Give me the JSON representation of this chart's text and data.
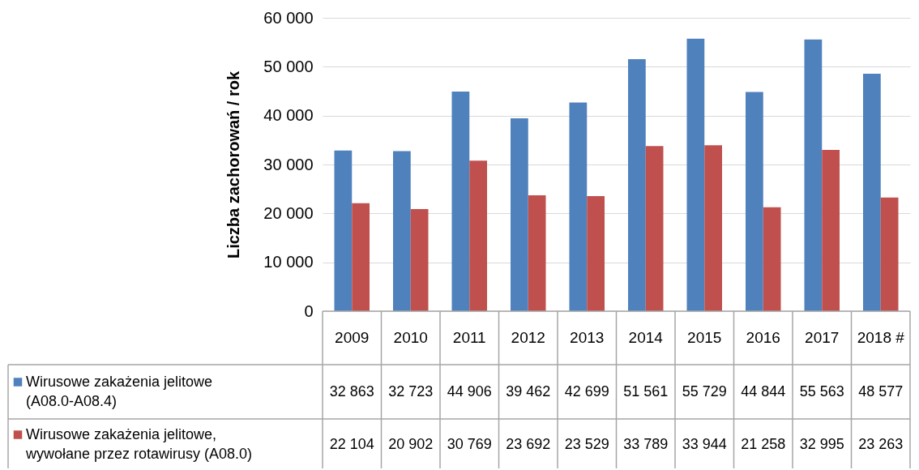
{
  "chart_data": {
    "type": "bar",
    "ylabel": "Liczba zachorowań / rok",
    "categories": [
      "2009",
      "2010",
      "2011",
      "2012",
      "2013",
      "2014",
      "2015",
      "2016",
      "2017",
      "2018 #"
    ],
    "series": [
      {
        "name": "Wirusowe zakażenia jelitowe (A08.0-A08.4)",
        "color": "#4f81bd",
        "values": [
          32863,
          32723,
          44906,
          39462,
          42699,
          51561,
          55729,
          44844,
          55563,
          48577
        ],
        "value_labels": [
          "32 863",
          "32 723",
          "44 906",
          "39 462",
          "42 699",
          "51 561",
          "55 729",
          "44 844",
          "55 563",
          "48 577"
        ]
      },
      {
        "name": "Wirusowe zakażenia jelitowe, wywołane przez rotawirusy (A08.0)",
        "color": "#c0504d",
        "values": [
          22104,
          20902,
          30769,
          23692,
          23529,
          33789,
          33944,
          21258,
          32995,
          23263
        ],
        "value_labels": [
          "22 104",
          "20 902",
          "30 769",
          "23 692",
          "23 529",
          "33 789",
          "33 944",
          "21 258",
          "32 995",
          "23 263"
        ]
      }
    ],
    "ylim": [
      0,
      60000
    ],
    "yticks": [
      0,
      {
        "value": 10000,
        "label": "10 000"
      },
      {
        "value": 20000,
        "label": "20 000"
      },
      {
        "value": 30000,
        "label": "30 000"
      },
      {
        "value": 40000,
        "label": "40 000"
      },
      {
        "value": 50000,
        "label": "50 000"
      },
      {
        "value": 60000,
        "label": "60 000"
      }
    ],
    "grid": "y",
    "legend": "bottom"
  }
}
